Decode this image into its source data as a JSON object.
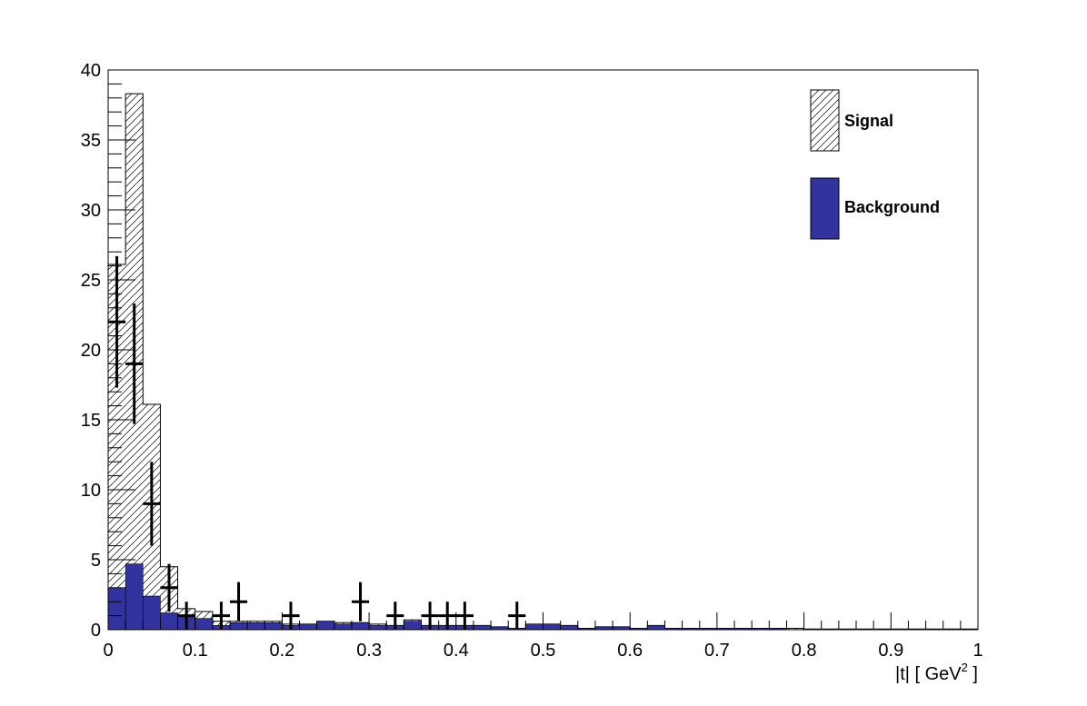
{
  "chart_data": {
    "type": "bar",
    "title": "",
    "xlabel": "|t|  [ GeV",
    "xlabel_sup": "2",
    "xlabel_suffix": " ]",
    "ylabel": "",
    "xlim": [
      0,
      1
    ],
    "ylim": [
      0,
      40
    ],
    "bin_width": 0.02,
    "x_ticks": [
      "0",
      "0.1",
      "0.2",
      "0.3",
      "0.4",
      "0.5",
      "0.6",
      "0.7",
      "0.8",
      "0.9",
      "1"
    ],
    "y_ticks": [
      "0",
      "5",
      "10",
      "15",
      "20",
      "25",
      "30",
      "35",
      "40"
    ],
    "legend": {
      "placement": "top-right",
      "entries": [
        "Signal",
        "Background"
      ]
    },
    "colors": {
      "background": "#3333a0",
      "signal_hatch": "#000000",
      "data": "#000000"
    },
    "series": [
      {
        "name": "Signal",
        "style": "hatched-stacked-total",
        "values": [
          26.1,
          38.3,
          16.1,
          4.5,
          1.5,
          1.3,
          0.6,
          0.6,
          0.6,
          0.6,
          0.4,
          0.4,
          0.6,
          0.5,
          0.5,
          0.4,
          0.3,
          0.7,
          0.3,
          0.3,
          0.3,
          0.3,
          0.2,
          0.1,
          0.4,
          0.4,
          0.3,
          0.1,
          0.2,
          0.2,
          0.1,
          0.3,
          0.1,
          0.1,
          0.1,
          0.1,
          0.1,
          0.1,
          0.1,
          0.1,
          0.05,
          0.05,
          0.05,
          0.05,
          0.05,
          0.05,
          0.05,
          0.05,
          0.05,
          0.05
        ]
      },
      {
        "name": "Background",
        "style": "filled",
        "values": [
          3.0,
          4.7,
          2.4,
          1.2,
          1.0,
          0.8,
          0.3,
          0.5,
          0.5,
          0.5,
          0.3,
          0.4,
          0.6,
          0.4,
          0.5,
          0.3,
          0.3,
          0.6,
          0.3,
          0.3,
          0.3,
          0.3,
          0.2,
          0.1,
          0.4,
          0.4,
          0.3,
          0.1,
          0.2,
          0.2,
          0.1,
          0.3,
          0.1,
          0.1,
          0.1,
          0.1,
          0.1,
          0.1,
          0.1,
          0.0,
          0.0,
          0.0,
          0.0,
          0.0,
          0.0,
          0.0,
          0.0,
          0.0,
          0.0,
          0.0
        ]
      },
      {
        "name": "",
        "style": "points-with-errors",
        "points": [
          {
            "x": 0.01,
            "y": 22,
            "err_low": 4.7,
            "err_high": 4.7
          },
          {
            "x": 0.03,
            "y": 19,
            "err_low": 4.3,
            "err_high": 4.3
          },
          {
            "x": 0.05,
            "y": 9,
            "err_low": 3.0,
            "err_high": 3.0
          },
          {
            "x": 0.07,
            "y": 3,
            "err_low": 1.7,
            "err_high": 1.7
          },
          {
            "x": 0.09,
            "y": 1,
            "err_low": 1.0,
            "err_high": 1.0
          },
          {
            "x": 0.13,
            "y": 1,
            "err_low": 1.0,
            "err_high": 1.0
          },
          {
            "x": 0.15,
            "y": 2,
            "err_low": 1.4,
            "err_high": 1.4
          },
          {
            "x": 0.21,
            "y": 1,
            "err_low": 1.0,
            "err_high": 1.0
          },
          {
            "x": 0.29,
            "y": 2,
            "err_low": 1.4,
            "err_high": 1.4
          },
          {
            "x": 0.33,
            "y": 1,
            "err_low": 1.0,
            "err_high": 1.0
          },
          {
            "x": 0.37,
            "y": 1,
            "err_low": 1.0,
            "err_high": 1.0
          },
          {
            "x": 0.39,
            "y": 1,
            "err_low": 1.0,
            "err_high": 1.0
          },
          {
            "x": 0.41,
            "y": 1,
            "err_low": 1.0,
            "err_high": 1.0
          },
          {
            "x": 0.47,
            "y": 1,
            "err_low": 1.0,
            "err_high": 1.0
          }
        ]
      }
    ]
  }
}
